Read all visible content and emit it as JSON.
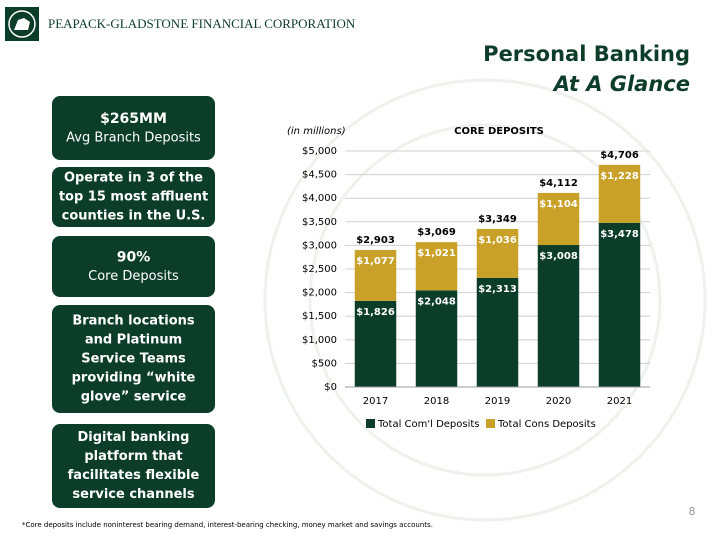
{
  "header": {
    "company": "PEAPACK-GLADSTONE FINANCIAL CORPORATION",
    "title": "Personal Banking",
    "subtitle": "At A Glance"
  },
  "callouts": [
    {
      "heading": "$265MM",
      "text": "Avg Branch Deposits"
    },
    {
      "lines": [
        "Operate in 3 of the",
        "top 15 most affluent",
        "counties in the U.S."
      ]
    },
    {
      "heading": "90%",
      "text": "Core Deposits"
    },
    {
      "lines": [
        "Branch locations",
        "and Platinum",
        "Service Teams",
        "providing “white",
        "glove” service"
      ]
    },
    {
      "lines": [
        "Digital banking",
        "platform that",
        "facilitates flexible",
        "service channels"
      ]
    }
  ],
  "chart_data": {
    "type": "stacked_bar",
    "title": "CORE DEPOSITS",
    "unit_note": "(in millions)",
    "categories": [
      "2017",
      "2018",
      "2019",
      "2020",
      "2021"
    ],
    "series": [
      {
        "name": "Total Com'l Deposits",
        "color": "#0c3d28",
        "values": [
          1826,
          2048,
          2313,
          3008,
          3478
        ],
        "value_labels": [
          "$1,826",
          "$2,048",
          "$2,313",
          "$3,008",
          "$3,478"
        ]
      },
      {
        "name": "Total Cons Deposits",
        "color": "#c9a128",
        "values": [
          1077,
          1021,
          1036,
          1104,
          1228
        ],
        "value_labels": [
          "$1,077",
          "$1,021",
          "$1,036",
          "$1,104",
          "$1,228"
        ]
      }
    ],
    "totals": [
      2903,
      3069,
      3349,
      4112,
      4706
    ],
    "total_labels": [
      "$2,903",
      "$3,069",
      "$3,349",
      "$4,112",
      "$4,706"
    ],
    "ylim": [
      0,
      5000
    ],
    "yticks": [
      {
        "value": 0,
        "label": "$0"
      },
      {
        "value": 500,
        "label": "$500"
      },
      {
        "value": 1000,
        "label": "$1,000"
      },
      {
        "value": 1500,
        "label": "$1,500"
      },
      {
        "value": 2000,
        "label": "$2,000"
      },
      {
        "value": 2500,
        "label": "$2,500"
      },
      {
        "value": 3000,
        "label": "$3,000"
      },
      {
        "value": 3500,
        "label": "$3,500"
      },
      {
        "value": 4000,
        "label": "$4,000"
      },
      {
        "value": 4500,
        "label": "$4,500"
      },
      {
        "value": 5000,
        "label": "$5,000"
      }
    ],
    "grid": true,
    "legend": "bottom"
  },
  "footnote": "*Core deposits include noninterest bearing demand, interest-bearing checking, money market and savings accounts.",
  "page_number": "8"
}
